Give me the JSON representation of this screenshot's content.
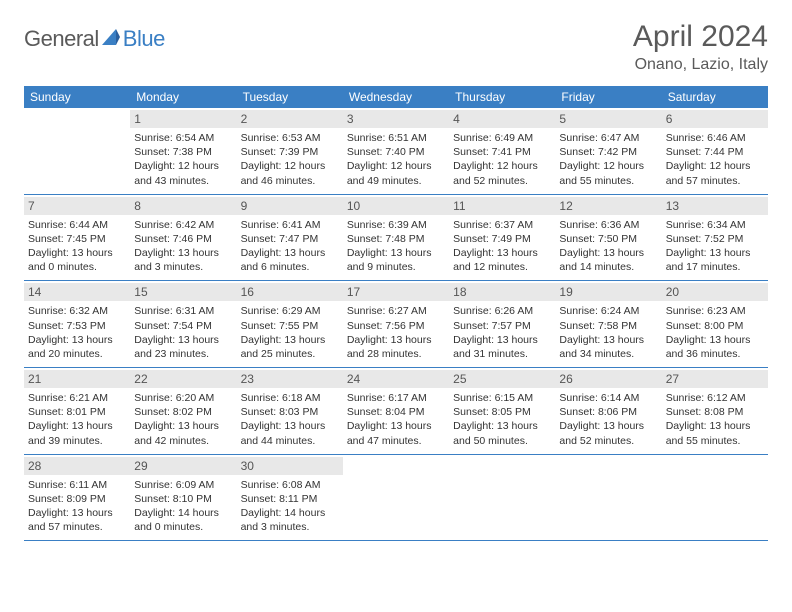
{
  "logo": {
    "general": "General",
    "blue": "Blue"
  },
  "title": "April 2024",
  "location": "Onano, Lazio, Italy",
  "weekdays": [
    "Sunday",
    "Monday",
    "Tuesday",
    "Wednesday",
    "Thursday",
    "Friday",
    "Saturday"
  ],
  "colors": {
    "header_bg": "#3a7fc4",
    "daynum_bg": "#e8e8e8",
    "text": "#5a5a5a",
    "body_text": "#333333"
  },
  "weeks": [
    [
      null,
      {
        "n": "1",
        "sr": "Sunrise: 6:54 AM",
        "ss": "Sunset: 7:38 PM",
        "d1": "Daylight: 12 hours",
        "d2": "and 43 minutes."
      },
      {
        "n": "2",
        "sr": "Sunrise: 6:53 AM",
        "ss": "Sunset: 7:39 PM",
        "d1": "Daylight: 12 hours",
        "d2": "and 46 minutes."
      },
      {
        "n": "3",
        "sr": "Sunrise: 6:51 AM",
        "ss": "Sunset: 7:40 PM",
        "d1": "Daylight: 12 hours",
        "d2": "and 49 minutes."
      },
      {
        "n": "4",
        "sr": "Sunrise: 6:49 AM",
        "ss": "Sunset: 7:41 PM",
        "d1": "Daylight: 12 hours",
        "d2": "and 52 minutes."
      },
      {
        "n": "5",
        "sr": "Sunrise: 6:47 AM",
        "ss": "Sunset: 7:42 PM",
        "d1": "Daylight: 12 hours",
        "d2": "and 55 minutes."
      },
      {
        "n": "6",
        "sr": "Sunrise: 6:46 AM",
        "ss": "Sunset: 7:44 PM",
        "d1": "Daylight: 12 hours",
        "d2": "and 57 minutes."
      }
    ],
    [
      {
        "n": "7",
        "sr": "Sunrise: 6:44 AM",
        "ss": "Sunset: 7:45 PM",
        "d1": "Daylight: 13 hours",
        "d2": "and 0 minutes."
      },
      {
        "n": "8",
        "sr": "Sunrise: 6:42 AM",
        "ss": "Sunset: 7:46 PM",
        "d1": "Daylight: 13 hours",
        "d2": "and 3 minutes."
      },
      {
        "n": "9",
        "sr": "Sunrise: 6:41 AM",
        "ss": "Sunset: 7:47 PM",
        "d1": "Daylight: 13 hours",
        "d2": "and 6 minutes."
      },
      {
        "n": "10",
        "sr": "Sunrise: 6:39 AM",
        "ss": "Sunset: 7:48 PM",
        "d1": "Daylight: 13 hours",
        "d2": "and 9 minutes."
      },
      {
        "n": "11",
        "sr": "Sunrise: 6:37 AM",
        "ss": "Sunset: 7:49 PM",
        "d1": "Daylight: 13 hours",
        "d2": "and 12 minutes."
      },
      {
        "n": "12",
        "sr": "Sunrise: 6:36 AM",
        "ss": "Sunset: 7:50 PM",
        "d1": "Daylight: 13 hours",
        "d2": "and 14 minutes."
      },
      {
        "n": "13",
        "sr": "Sunrise: 6:34 AM",
        "ss": "Sunset: 7:52 PM",
        "d1": "Daylight: 13 hours",
        "d2": "and 17 minutes."
      }
    ],
    [
      {
        "n": "14",
        "sr": "Sunrise: 6:32 AM",
        "ss": "Sunset: 7:53 PM",
        "d1": "Daylight: 13 hours",
        "d2": "and 20 minutes."
      },
      {
        "n": "15",
        "sr": "Sunrise: 6:31 AM",
        "ss": "Sunset: 7:54 PM",
        "d1": "Daylight: 13 hours",
        "d2": "and 23 minutes."
      },
      {
        "n": "16",
        "sr": "Sunrise: 6:29 AM",
        "ss": "Sunset: 7:55 PM",
        "d1": "Daylight: 13 hours",
        "d2": "and 25 minutes."
      },
      {
        "n": "17",
        "sr": "Sunrise: 6:27 AM",
        "ss": "Sunset: 7:56 PM",
        "d1": "Daylight: 13 hours",
        "d2": "and 28 minutes."
      },
      {
        "n": "18",
        "sr": "Sunrise: 6:26 AM",
        "ss": "Sunset: 7:57 PM",
        "d1": "Daylight: 13 hours",
        "d2": "and 31 minutes."
      },
      {
        "n": "19",
        "sr": "Sunrise: 6:24 AM",
        "ss": "Sunset: 7:58 PM",
        "d1": "Daylight: 13 hours",
        "d2": "and 34 minutes."
      },
      {
        "n": "20",
        "sr": "Sunrise: 6:23 AM",
        "ss": "Sunset: 8:00 PM",
        "d1": "Daylight: 13 hours",
        "d2": "and 36 minutes."
      }
    ],
    [
      {
        "n": "21",
        "sr": "Sunrise: 6:21 AM",
        "ss": "Sunset: 8:01 PM",
        "d1": "Daylight: 13 hours",
        "d2": "and 39 minutes."
      },
      {
        "n": "22",
        "sr": "Sunrise: 6:20 AM",
        "ss": "Sunset: 8:02 PM",
        "d1": "Daylight: 13 hours",
        "d2": "and 42 minutes."
      },
      {
        "n": "23",
        "sr": "Sunrise: 6:18 AM",
        "ss": "Sunset: 8:03 PM",
        "d1": "Daylight: 13 hours",
        "d2": "and 44 minutes."
      },
      {
        "n": "24",
        "sr": "Sunrise: 6:17 AM",
        "ss": "Sunset: 8:04 PM",
        "d1": "Daylight: 13 hours",
        "d2": "and 47 minutes."
      },
      {
        "n": "25",
        "sr": "Sunrise: 6:15 AM",
        "ss": "Sunset: 8:05 PM",
        "d1": "Daylight: 13 hours",
        "d2": "and 50 minutes."
      },
      {
        "n": "26",
        "sr": "Sunrise: 6:14 AM",
        "ss": "Sunset: 8:06 PM",
        "d1": "Daylight: 13 hours",
        "d2": "and 52 minutes."
      },
      {
        "n": "27",
        "sr": "Sunrise: 6:12 AM",
        "ss": "Sunset: 8:08 PM",
        "d1": "Daylight: 13 hours",
        "d2": "and 55 minutes."
      }
    ],
    [
      {
        "n": "28",
        "sr": "Sunrise: 6:11 AM",
        "ss": "Sunset: 8:09 PM",
        "d1": "Daylight: 13 hours",
        "d2": "and 57 minutes."
      },
      {
        "n": "29",
        "sr": "Sunrise: 6:09 AM",
        "ss": "Sunset: 8:10 PM",
        "d1": "Daylight: 14 hours",
        "d2": "and 0 minutes."
      },
      {
        "n": "30",
        "sr": "Sunrise: 6:08 AM",
        "ss": "Sunset: 8:11 PM",
        "d1": "Daylight: 14 hours",
        "d2": "and 3 minutes."
      },
      null,
      null,
      null,
      null
    ]
  ]
}
